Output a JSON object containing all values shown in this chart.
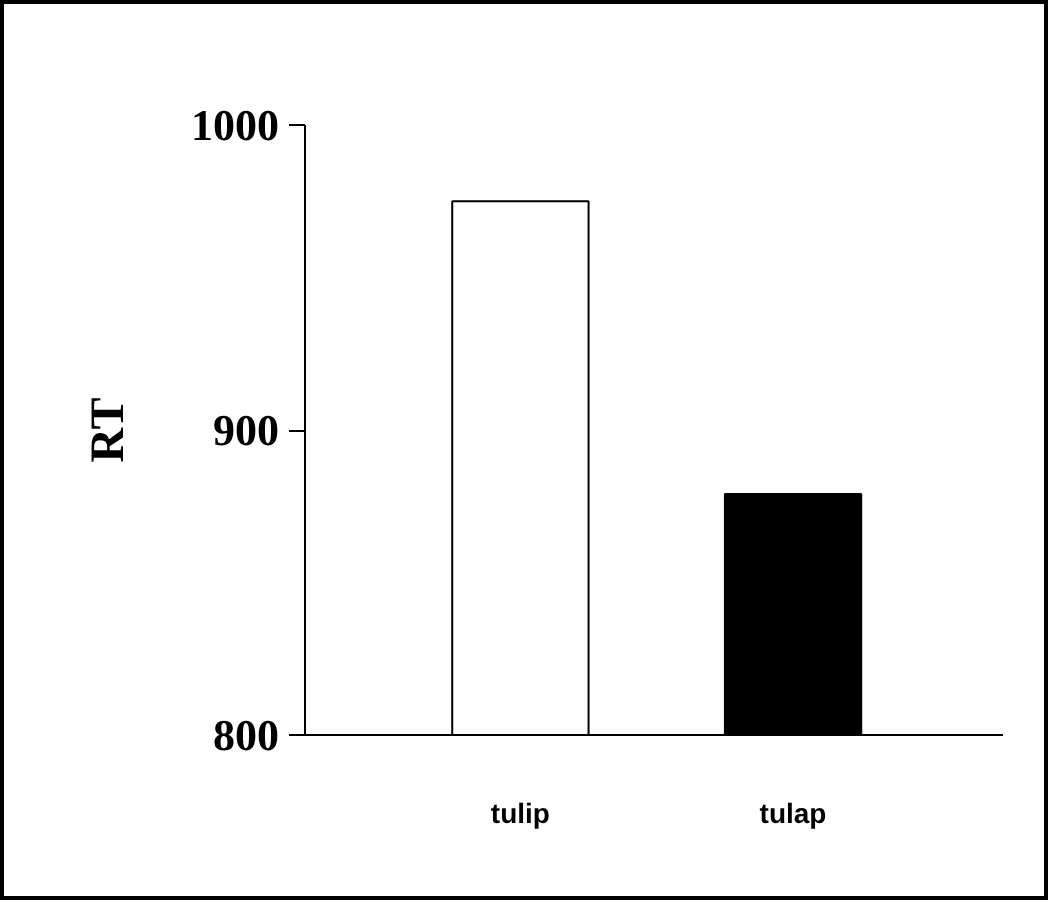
{
  "chart_data": {
    "type": "bar",
    "ylabel": "RT",
    "categories": [
      "tulip",
      "tulap"
    ],
    "colors": [
      "#ffffff",
      "#000000"
    ],
    "values": [
      975,
      879
    ],
    "ylim": [
      800,
      1000
    ],
    "yticks": [
      800,
      900,
      1000
    ],
    "grid": false
  }
}
